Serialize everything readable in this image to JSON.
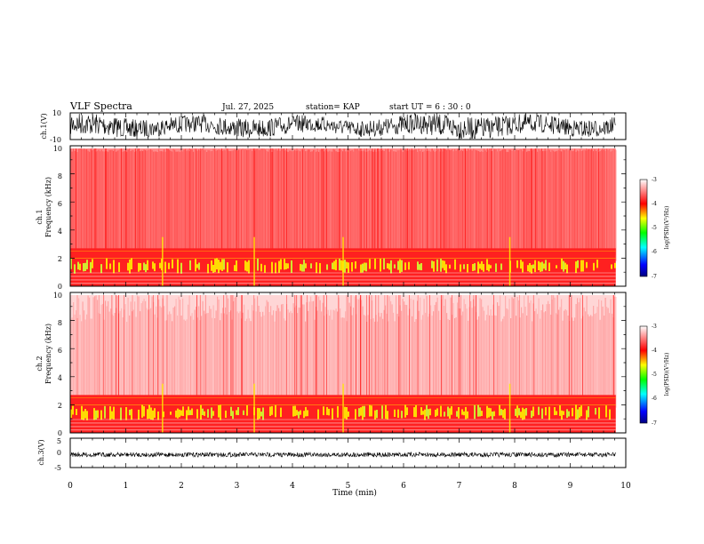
{
  "header": {
    "title": "VLF Spectra",
    "date": "Jul. 27, 2025",
    "station": "station= KAP",
    "start": "start  UT  =  6 : 30 : 0"
  },
  "chart_data": [
    {
      "type": "line",
      "name": "ch1-waveform",
      "ylabel": "ch.1(V)",
      "ylim": [
        -10,
        10
      ],
      "yticks": [
        "10",
        "-10"
      ],
      "xlim": [
        0,
        10
      ]
    },
    {
      "type": "heatmap",
      "name": "ch1-spectrogram",
      "ylabel": "ch.1",
      "ylabel2": "Frequency (kHz)",
      "ylim": [
        0,
        10
      ],
      "yticks": [
        "0",
        "2",
        "4",
        "6",
        "8",
        "10"
      ],
      "xlim": [
        0,
        10
      ],
      "data_end_min": 9.82,
      "colorbar": {
        "label": "log(PSD)(V²/Hz)",
        "range": [
          -7,
          -3
        ],
        "ticks": [
          "-3",
          "-4",
          "-5",
          "-6",
          "-7"
        ]
      }
    },
    {
      "type": "heatmap",
      "name": "ch2-spectrogram",
      "ylabel": "ch.2",
      "ylabel2": "Frequency (kHz)",
      "ylim": [
        0,
        10
      ],
      "yticks": [
        "0",
        "2",
        "4",
        "6",
        "8",
        "10"
      ],
      "xlim": [
        0,
        10
      ],
      "data_end_min": 9.82,
      "colorbar": {
        "label": "log(PSD)(V²/Hz)",
        "range": [
          -7,
          -3
        ],
        "ticks": [
          "-3",
          "-4",
          "-5",
          "-6",
          "-7"
        ]
      }
    },
    {
      "type": "line",
      "name": "ch3-waveform",
      "ylabel": "ch.3(V)",
      "ylim": [
        -5,
        5
      ],
      "yticks": [
        "5",
        "0",
        "-5"
      ],
      "xlim": [
        0,
        10
      ],
      "xlabel": "Time (min)",
      "xticks": [
        "0",
        "1",
        "2",
        "3",
        "4",
        "5",
        "6",
        "7",
        "8",
        "9",
        "10"
      ]
    }
  ],
  "colors": {
    "colormap": [
      "#000080",
      "#0000ff",
      "#00ffff",
      "#00ff00",
      "#ffff00",
      "#ff0000",
      "#ffffff"
    ]
  }
}
